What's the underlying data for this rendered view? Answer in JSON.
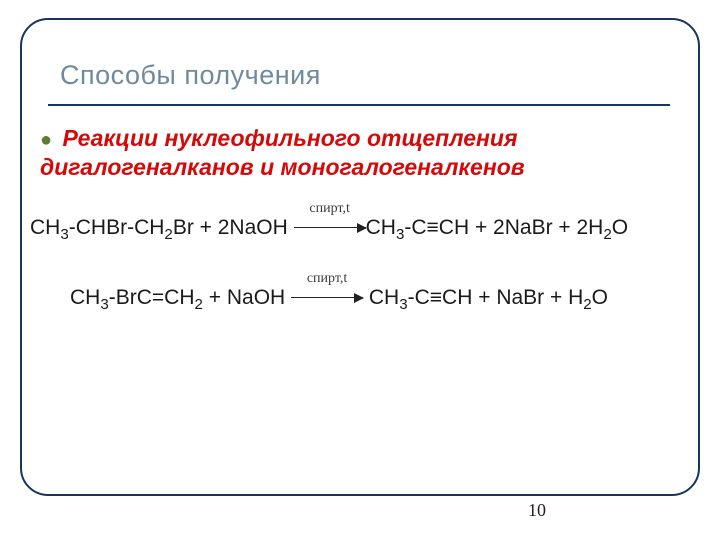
{
  "colors": {
    "frame_border": "#17365d",
    "title_color": "#6f8a9e",
    "title_underline": "#17365d",
    "bullet_color": "#5e7d34",
    "subtitle_color": "#d40a0a",
    "body_text": "#1a1a1a",
    "arrow_condition_color": "#3b3b3b"
  },
  "typography": {
    "title_fontsize": 27,
    "subtitle_fontsize": 23,
    "equation_fontsize": 21,
    "condition_fontsize": 14,
    "pagenum_fontsize": 18,
    "body_family": "Arial",
    "condition_family": "Times New Roman"
  },
  "layout": {
    "slide_width": 720,
    "slide_height": 540,
    "frame_radius": 28
  },
  "title": "Способы получения",
  "subtitle": "Реакции нуклеофильного отщепления дигалогеналканов и моногалогеналкенов",
  "bullet_glyph": "●",
  "arrow_condition": "спирт,t",
  "equation1": {
    "lhs_parts": [
      "CH",
      "3",
      "-CHBr-CH",
      "2",
      "Br + 2NaOH"
    ],
    "rhs_parts": [
      "CH",
      "3",
      "-C≡CH + 2NaBr + 2H",
      "2",
      "O"
    ]
  },
  "equation2": {
    "lhs_parts": [
      "CH",
      "3",
      "-BrC=CH",
      "2",
      " + NaOH"
    ],
    "rhs_parts": [
      "CH",
      "3",
      "-C≡CH + NaBr + H",
      "2",
      "O"
    ]
  },
  "page_number": "10"
}
